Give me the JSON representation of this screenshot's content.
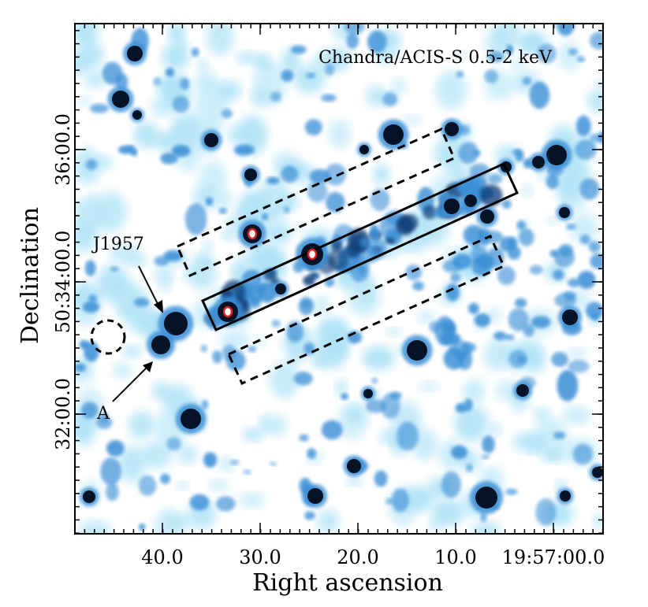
{
  "figure": {
    "title": "Chandra/ACIS-S 0.5-2 keV",
    "x_axis": {
      "label": "Right ascension",
      "ticks": [
        "40.0",
        "30.0",
        "20.0",
        "10.0",
        "19:57:00.0"
      ]
    },
    "y_axis": {
      "label": "Declination",
      "ticks": [
        "32:00.0",
        "50:34:00.0",
        "36:00.0"
      ]
    },
    "annotations": {
      "source_label": "J1957",
      "feature_label": "A"
    },
    "colors": {
      "low_emission": "#aee2f6",
      "mid_emission": "#3a8fd6",
      "high_emission": "#0a3d78",
      "point_source_core": "#061226",
      "marker_ring": "#e11d1d"
    },
    "regions": {
      "solid_box": "source extraction region",
      "dashed_boxes": "background regions",
      "dashed_circle": "background circle"
    }
  }
}
